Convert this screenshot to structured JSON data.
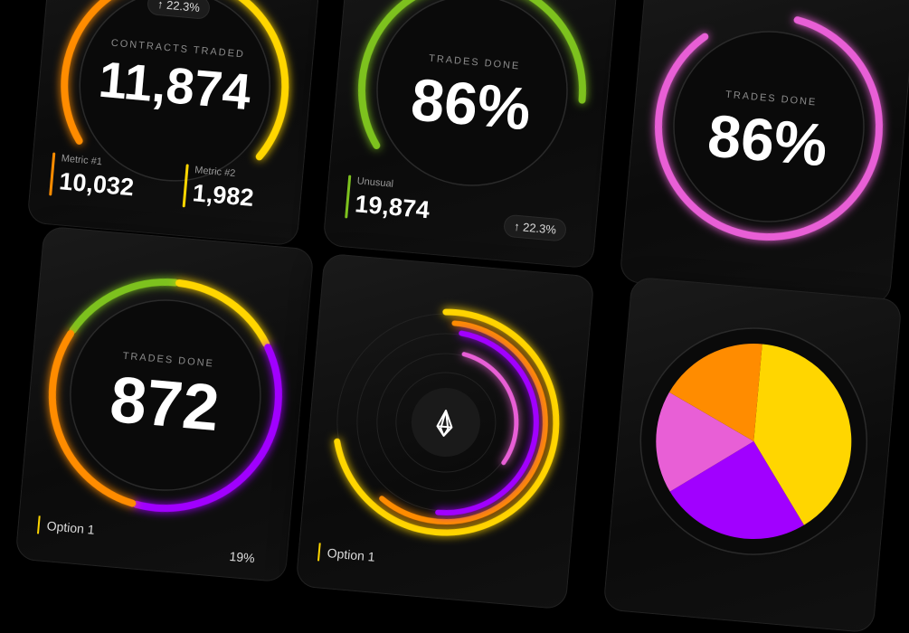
{
  "colors": {
    "orange": "#ff8c00",
    "yellow": "#ffd600",
    "green": "#7dc21e",
    "pink": "#e85fd6",
    "purple": "#a100ff",
    "background": "#000000"
  },
  "card_contracts": {
    "badge": "↑ 22.3%",
    "label": "CONTRACTS TRADED",
    "value": "11,874",
    "metrics": [
      {
        "name": "Metric #1",
        "value": "10,032",
        "color": "#ff8c00"
      },
      {
        "name": "Metric #2",
        "value": "1,982",
        "color": "#ffd600"
      }
    ]
  },
  "card_trades_green": {
    "label": "TRADES DONE",
    "value": "86%",
    "metric_name": "Unusual",
    "metric_value": "19,874",
    "badge": "↑ 22.3%",
    "progress_percent": 86
  },
  "card_trades_pink": {
    "label": "TRADES DONE",
    "value": "86%",
    "progress_percent": 86
  },
  "card_trades_multi": {
    "label": "TRADES DONE",
    "value": "872",
    "option": "Option 1",
    "option_percent": "19%"
  },
  "card_rings": {
    "option": "Option 1",
    "logo_icon": "eos-logo-icon"
  },
  "card_pie": {
    "slices": [
      {
        "color": "#ffd600",
        "percent": 40
      },
      {
        "color": "#a100ff",
        "percent": 25
      },
      {
        "color": "#e85fd6",
        "percent": 17
      },
      {
        "color": "#ff8c00",
        "percent": 18
      }
    ]
  }
}
